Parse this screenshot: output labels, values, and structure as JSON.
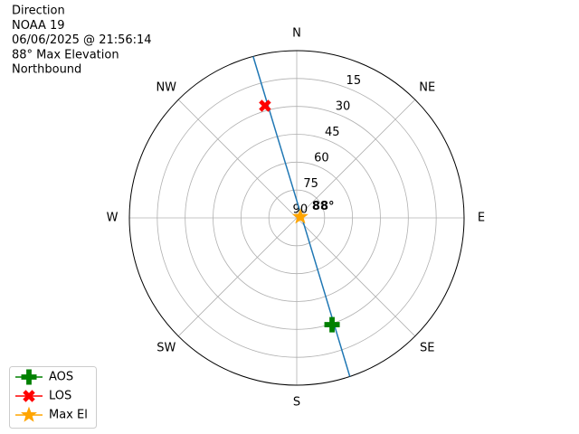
{
  "chart_data": {
    "type": "polar",
    "title_lines": [
      "Direction",
      "NOAA 19",
      "06/06/2025 @ 21:56:14",
      "88° Max Elevation",
      "Northbound"
    ],
    "xticks": [
      {
        "value": 0,
        "label": "N"
      },
      {
        "value": 45,
        "label": "NE"
      },
      {
        "value": 90,
        "label": "E"
      },
      {
        "value": 135,
        "label": "SE"
      },
      {
        "value": 180,
        "label": "S"
      },
      {
        "value": 225,
        "label": "SW"
      },
      {
        "value": 270,
        "label": "W"
      },
      {
        "value": 315,
        "label": "NW"
      }
    ],
    "rlim": [
      90,
      0
    ],
    "rticks": [
      90,
      75,
      60,
      45,
      30,
      15
    ],
    "grid": true,
    "track": {
      "color": "#1f77b4",
      "az": [
        161.5,
        159.8,
        147.0,
        72.2,
        0.5,
        346.6,
        344.9
      ],
      "el": [
        0,
        44.6,
        80.3,
        87.3,
        80.9,
        45.2,
        0
      ]
    },
    "series": [
      {
        "name": "AOS",
        "color": "#008000",
        "marker": "plus",
        "az": [
          161.7
        ],
        "el": [
          29.5
        ]
      },
      {
        "name": "LOS",
        "color": "#ff0000",
        "marker": "x",
        "az": [
          344.2
        ],
        "el": [
          27.3
        ]
      },
      {
        "name": "Max El",
        "color": "#ffa500",
        "marker": "star",
        "az": [
          72.2
        ],
        "el": [
          88
        ]
      }
    ],
    "annotation": "88°",
    "legend": "lower left"
  }
}
